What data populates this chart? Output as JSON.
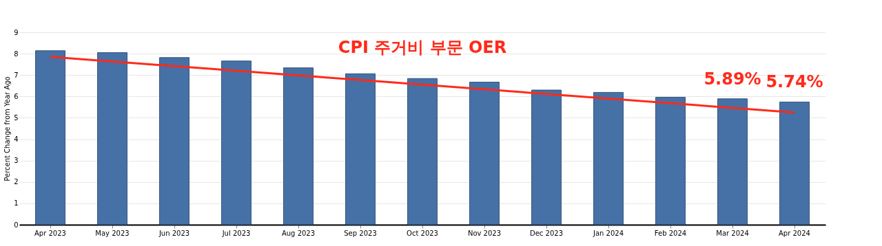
{
  "chart_data": {
    "type": "bar",
    "title": "CPI 주거비 부문 OER",
    "ylabel": "Percent Change from Year Ago",
    "categories": [
      "Apr 2023",
      "May 2023",
      "Jun 2023",
      "Jul 2023",
      "Aug 2023",
      "Sep 2023",
      "Oct 2023",
      "Nov 2023",
      "Dec 2023",
      "Jan 2024",
      "Feb 2024",
      "Mar 2024",
      "Apr 2024"
    ],
    "series": [
      {
        "color": "#4571a6",
        "values": [
          8.14,
          8.05,
          7.82,
          7.66,
          7.34,
          7.06,
          6.84,
          6.67,
          6.3,
          6.19,
          5.96,
          5.89,
          5.74
        ],
        "value_labels": [
          null,
          null,
          null,
          null,
          null,
          null,
          null,
          null,
          null,
          null,
          null,
          "5.89%",
          "5.74%"
        ]
      },
      {
        "type": "line",
        "color": "#ff2a1a",
        "x": [
          "Apr 2023",
          "Apr 2024"
        ],
        "values": [
          7.85,
          5.25
        ]
      }
    ],
    "ylim": [
      0,
      9
    ],
    "yticks": [
      0,
      1,
      2,
      3,
      4,
      5,
      6,
      7,
      8,
      9
    ],
    "grid": "y"
  }
}
